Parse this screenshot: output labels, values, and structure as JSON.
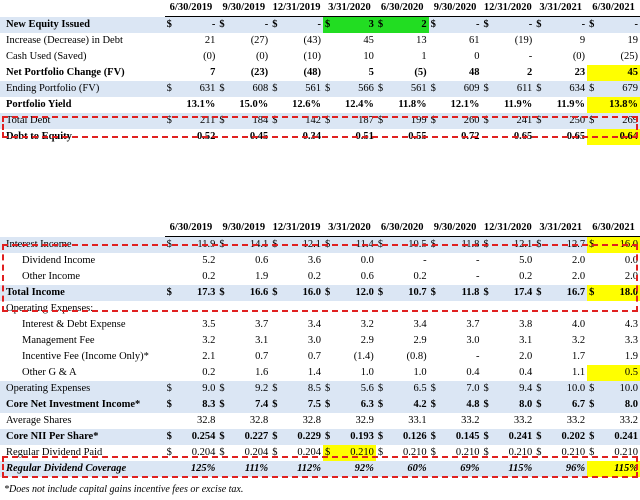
{
  "top": {
    "headers": [
      "6/30/2019",
      "9/30/2019",
      "12/31/2019",
      "3/31/2020",
      "6/30/2020",
      "9/30/2020",
      "12/31/2020",
      "3/31/2021",
      "6/30/2021"
    ],
    "rows": [
      {
        "label": "New Equity Issued",
        "values": [
          "-",
          "-",
          "-",
          "3",
          "2",
          "-",
          "-",
          "-",
          "-"
        ],
        "dollar": true,
        "bold": true,
        "blue": true
      },
      {
        "label": "Increase (Decrease) in Debt",
        "values": [
          "21",
          "(27)",
          "(43)",
          "45",
          "13",
          "61",
          "(19)",
          "9",
          "19"
        ]
      },
      {
        "label": "Cash Used (Saved)",
        "values": [
          "(0)",
          "(0)",
          "(10)",
          "10",
          "1",
          "0",
          "-",
          "(0)",
          "(25)"
        ]
      },
      {
        "label": "Net Portfolio Change (FV)",
        "values": [
          "7",
          "(23)",
          "(48)",
          "5",
          "(5)",
          "48",
          "2",
          "23",
          "45"
        ],
        "bold": true
      },
      {
        "label": "Ending Portfolio (FV)",
        "values": [
          "631",
          "608",
          "561",
          "566",
          "561",
          "609",
          "611",
          "634",
          "679"
        ],
        "dollar": true,
        "blue": true
      },
      {
        "label": "Portfolio Yield",
        "values": [
          "13.1%",
          "15.0%",
          "12.6%",
          "12.4%",
          "11.8%",
          "12.1%",
          "11.9%",
          "11.9%",
          "13.8%"
        ],
        "bold": true
      },
      {
        "label": "Total Debt",
        "values": [
          "211",
          "184",
          "142",
          "187",
          "199",
          "260",
          "241",
          "250",
          "269"
        ],
        "dollar": true,
        "blue": true
      },
      {
        "label": "Debt to Equity",
        "values": [
          "0.52",
          "0.45",
          "0.34",
          "0.51",
          "0.55",
          "0.72",
          "0.65",
          "0.65",
          "0.64"
        ],
        "bold": true
      }
    ]
  },
  "bottom": {
    "headers": [
      "6/30/2019",
      "9/30/2019",
      "12/31/2019",
      "3/31/2020",
      "6/30/2020",
      "9/30/2020",
      "12/31/2020",
      "3/31/2021",
      "6/30/2021"
    ],
    "rows": [
      {
        "label": "Interest Income",
        "values": [
          "11.9",
          "14.1",
          "12.1",
          "11.4",
          "10.5",
          "11.8",
          "12.1",
          "12.7",
          "16.0"
        ],
        "dollar": true,
        "blue": true
      },
      {
        "label": "Dividend Income",
        "values": [
          "5.2",
          "0.6",
          "3.6",
          "0.0",
          "-",
          "-",
          "5.0",
          "2.0",
          "0.0"
        ],
        "indent": true
      },
      {
        "label": "Other Income",
        "values": [
          "0.2",
          "1.9",
          "0.2",
          "0.6",
          "0.2",
          "-",
          "0.2",
          "2.0",
          "2.0"
        ],
        "indent": true
      },
      {
        "label": "Total Income",
        "values": [
          "17.3",
          "16.6",
          "16.0",
          "12.0",
          "10.7",
          "11.8",
          "17.4",
          "16.7",
          "18.0"
        ],
        "dollar": true,
        "blue": true,
        "bold": true
      },
      {
        "label": "Operating Expenses:",
        "values": [
          "",
          "",
          "",
          "",
          "",
          "",
          "",
          "",
          ""
        ]
      },
      {
        "label": "Interest & Debt Expense",
        "values": [
          "3.5",
          "3.7",
          "3.4",
          "3.2",
          "3.4",
          "3.7",
          "3.8",
          "4.0",
          "4.3"
        ],
        "indent": true
      },
      {
        "label": "Management Fee",
        "values": [
          "3.2",
          "3.1",
          "3.0",
          "2.9",
          "2.9",
          "3.0",
          "3.1",
          "3.2",
          "3.3"
        ],
        "indent": true
      },
      {
        "label": "Incentive Fee (Income Only)*",
        "values": [
          "2.1",
          "0.7",
          "0.7",
          "(1.4)",
          "(0.8)",
          "-",
          "2.0",
          "1.7",
          "1.9"
        ],
        "indent": true
      },
      {
        "label": "Other G & A",
        "values": [
          "0.2",
          "1.6",
          "1.4",
          "1.0",
          "1.0",
          "0.4",
          "0.4",
          "1.1",
          "0.5"
        ],
        "indent": true
      },
      {
        "label": "Operating Expenses",
        "values": [
          "9.0",
          "9.2",
          "8.5",
          "5.6",
          "6.5",
          "7.0",
          "9.4",
          "10.0",
          "10.0"
        ],
        "dollar": true,
        "blue": true
      },
      {
        "label": "Core Net Investment Income*",
        "values": [
          "8.3",
          "7.4",
          "7.5",
          "6.3",
          "4.2",
          "4.8",
          "8.0",
          "6.7",
          "8.0"
        ],
        "dollar": true,
        "blue": true,
        "bold": true
      },
      {
        "label": "Average Shares",
        "values": [
          "32.8",
          "32.8",
          "32.8",
          "32.9",
          "33.1",
          "33.2",
          "33.2",
          "33.2",
          "33.2"
        ]
      },
      {
        "label": "Core NII Per Share*",
        "values": [
          "0.254",
          "0.227",
          "0.229",
          "0.193",
          "0.126",
          "0.145",
          "0.241",
          "0.202",
          "0.241"
        ],
        "dollar": true,
        "blue": true,
        "bold": true
      },
      {
        "label": "Regular Dividend Paid",
        "values": [
          "0.204",
          "0.204",
          "0.204",
          "0.210",
          "0.210",
          "0.210",
          "0.210",
          "0.210",
          "0.210"
        ],
        "dollar": true
      },
      {
        "label": "Regular Dividend Coverage",
        "values": [
          "125%",
          "111%",
          "112%",
          "92%",
          "60%",
          "69%",
          "115%",
          "96%",
          "115%"
        ],
        "blue": true,
        "bold": true,
        "italic": true
      }
    ]
  },
  "footnote": "*Does not include capital gains incentive fees or excise tax."
}
